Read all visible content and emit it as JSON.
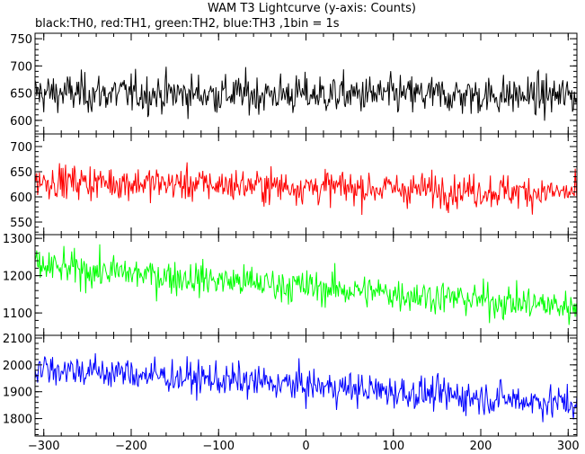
{
  "title": "WAM T3 Lightcurve (y-axis: Counts)",
  "subtitle": "black:TH0, red:TH1, green:TH2, blue:TH3 ,1bin = 1s",
  "chart_data": {
    "type": "line",
    "xlim": [
      -310,
      310
    ],
    "x_ticks": [
      -300,
      -200,
      -100,
      0,
      100,
      200,
      300
    ],
    "x_tick_labels": [
      "−300",
      "−200",
      "−100",
      "0",
      "100",
      "200",
      "300"
    ],
    "bin_seconds": 1,
    "panels": [
      {
        "name": "TH0",
        "color": "#000000",
        "ylim": [
          575,
          760
        ],
        "y_ticks": [
          600,
          650,
          700,
          750
        ],
        "y_tick_labels": [
          "600",
          "650",
          "700",
          "750"
        ],
        "mean_start": 650,
        "mean_end": 645,
        "noise": 30
      },
      {
        "name": "TH1",
        "color": "#ff0000",
        "ylim": [
          525,
          725
        ],
        "y_ticks": [
          550,
          600,
          650,
          700
        ],
        "y_tick_labels": [
          "550",
          "600",
          "650",
          "700"
        ],
        "mean_start": 632,
        "mean_end": 608,
        "noise": 28
      },
      {
        "name": "TH2",
        "color": "#00ff00",
        "ylim": [
          1040,
          1310
        ],
        "y_ticks": [
          1100,
          1200,
          1300
        ],
        "y_tick_labels": [
          "1100",
          "1200",
          "1300"
        ],
        "mean_start": 1225,
        "mean_end": 1115,
        "noise": 38
      },
      {
        "name": "TH3",
        "color": "#0000ff",
        "ylim": [
          1735,
          2110
        ],
        "y_ticks": [
          1800,
          1900,
          2000,
          2100
        ],
        "y_tick_labels": [
          "1800",
          "1900",
          "2000",
          "2100"
        ],
        "mean_start": 1990,
        "mean_end": 1855,
        "noise": 52
      }
    ]
  }
}
